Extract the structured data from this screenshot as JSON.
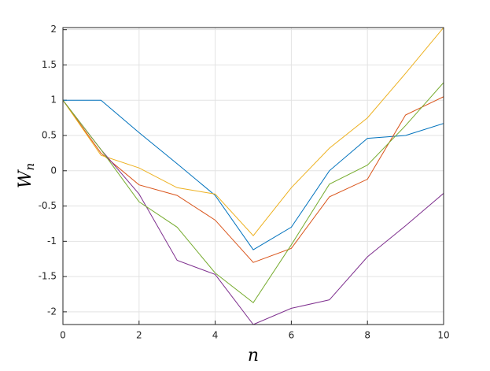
{
  "chart_data": {
    "type": "line",
    "x_label": "n",
    "y_label": "W",
    "y_label_sub": "n",
    "x": [
      0,
      1,
      2,
      3,
      4,
      5,
      6,
      7,
      8,
      9,
      10
    ],
    "series": [
      {
        "color": "#0072bd",
        "values": [
          1,
          1,
          0.54,
          0.1,
          -0.35,
          -1.12,
          -0.8,
          0,
          0.46,
          0.5,
          0.67
        ]
      },
      {
        "color": "#d95319",
        "values": [
          1,
          0.25,
          -0.2,
          -0.35,
          -0.7,
          -1.3,
          -1.1,
          -0.37,
          -0.12,
          0.79,
          1.05
        ]
      },
      {
        "color": "#edb120",
        "values": [
          1,
          0.22,
          0.04,
          -0.24,
          -0.33,
          -0.92,
          -0.24,
          0.32,
          0.75,
          1.38,
          2.03
        ]
      },
      {
        "color": "#7e2f8e",
        "values": [
          1,
          0.3,
          -0.33,
          -1.27,
          -1.47,
          -2.18,
          -1.95,
          -1.83,
          -1.22,
          -0.78,
          -0.32
        ]
      },
      {
        "color": "#77ac30",
        "values": [
          1,
          0.3,
          -0.44,
          -0.8,
          -1.45,
          -1.87,
          -1.05,
          -0.19,
          0.08,
          0.64,
          1.25
        ]
      }
    ],
    "xlim": [
      0,
      10
    ],
    "xticks": [
      0,
      2,
      4,
      6,
      8,
      10
    ],
    "ylim": [
      -2.18,
      2.03
    ],
    "yticks": [
      -2,
      -1.5,
      -1,
      -0.5,
      0,
      0.5,
      1,
      1.5,
      2
    ],
    "grid": true
  }
}
